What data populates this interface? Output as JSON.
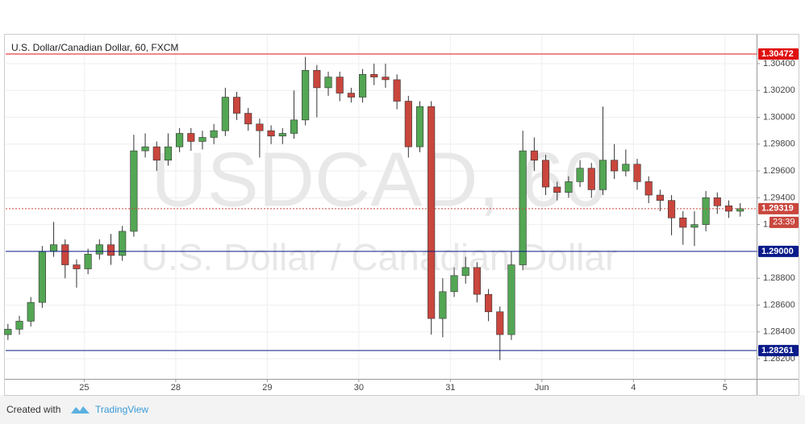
{
  "chart_data": {
    "type": "candlestick",
    "title": "U.S. Dollar/Canadian Dollar, 60, FXCM",
    "watermark": {
      "symbol": "USDCAD, 60",
      "description": "U.S. Dollar / Canadian Dollar"
    },
    "x": [
      0,
      3,
      6,
      9,
      12,
      15,
      18,
      21,
      24,
      27,
      30,
      33,
      36,
      39,
      42,
      45,
      48,
      51,
      54,
      57,
      60,
      63,
      66,
      69,
      72,
      75,
      78,
      81,
      84,
      87,
      90,
      93,
      96,
      99,
      102,
      105,
      108,
      111,
      114,
      117,
      120,
      123,
      126,
      129,
      132,
      135,
      138,
      141,
      144,
      147,
      150,
      153,
      156,
      159,
      162,
      165,
      168,
      171,
      174,
      177,
      180,
      183,
      186,
      189,
      192
    ],
    "open": [
      1.2838,
      1.2842,
      1.2848,
      1.2862,
      1.29,
      1.2905,
      1.289,
      1.2887,
      1.2898,
      1.2905,
      1.2897,
      1.2915,
      1.2975,
      1.2978,
      1.2968,
      1.2978,
      1.2988,
      1.2982,
      1.2985,
      1.299,
      1.3015,
      1.3003,
      1.2995,
      1.299,
      1.2986,
      1.2988,
      1.2998,
      1.3035,
      1.3022,
      1.303,
      1.3018,
      1.3015,
      1.3032,
      1.303,
      1.3028,
      1.3012,
      1.2978,
      1.3008,
      1.285,
      1.287,
      1.2882,
      1.2888,
      1.2868,
      1.2855,
      1.2838,
      1.289,
      1.2975,
      1.2968,
      1.2948,
      1.2944,
      1.2952,
      1.2962,
      1.2946,
      1.2968,
      1.296,
      1.2965,
      1.2952,
      1.2942,
      1.2938,
      1.2925,
      1.2918,
      1.292,
      1.294,
      1.2934,
      1.293
    ],
    "high": [
      1.2846,
      1.2852,
      1.2866,
      1.2904,
      1.2922,
      1.2909,
      1.2894,
      1.2902,
      1.2909,
      1.2913,
      1.2919,
      1.2987,
      1.2988,
      1.2982,
      1.2988,
      1.2992,
      1.2992,
      1.299,
      1.2995,
      1.3022,
      1.3019,
      1.3007,
      1.2999,
      1.2994,
      1.2992,
      1.302,
      1.3045,
      1.3039,
      1.3034,
      1.3034,
      1.3022,
      1.3036,
      1.304,
      1.304,
      1.3032,
      1.3016,
      1.3012,
      1.3012,
      1.288,
      1.2888,
      1.2896,
      1.2892,
      1.2872,
      1.2859,
      1.29,
      1.299,
      1.2985,
      1.2972,
      1.2952,
      1.2956,
      1.2968,
      1.2966,
      1.3008,
      1.298,
      1.2976,
      1.2969,
      1.2956,
      1.2946,
      1.2942,
      1.293,
      1.293,
      1.2945,
      1.2944,
      1.2938,
      1.2936
    ],
    "low": [
      1.2834,
      1.2838,
      1.2844,
      1.2858,
      1.2896,
      1.288,
      1.2873,
      1.2883,
      1.2894,
      1.289,
      1.2893,
      1.2911,
      1.297,
      1.296,
      1.2964,
      1.2974,
      1.2975,
      1.2976,
      1.298,
      1.2986,
      1.2998,
      1.299,
      1.297,
      1.298,
      1.298,
      1.2984,
      1.2994,
      1.3,
      1.3016,
      1.3012,
      1.3011,
      1.3011,
      1.3024,
      1.3022,
      1.3006,
      1.297,
      1.2974,
      1.2838,
      1.2836,
      1.2866,
      1.2876,
      1.2862,
      1.2848,
      1.2819,
      1.2834,
      1.2886,
      1.296,
      1.2942,
      1.2938,
      1.294,
      1.2948,
      1.294,
      1.2942,
      1.2954,
      1.2956,
      1.2946,
      1.2936,
      1.293,
      1.2912,
      1.2905,
      1.2904,
      1.2915,
      1.2928,
      1.2925,
      1.2926
    ],
    "close": [
      1.2842,
      1.2848,
      1.2862,
      1.29,
      1.2905,
      1.289,
      1.2887,
      1.2898,
      1.2905,
      1.2897,
      1.2915,
      1.2975,
      1.2978,
      1.2968,
      1.2978,
      1.2988,
      1.2982,
      1.2985,
      1.299,
      1.3015,
      1.3003,
      1.2995,
      1.299,
      1.2986,
      1.2988,
      1.2998,
      1.3035,
      1.3022,
      1.303,
      1.3018,
      1.3015,
      1.3032,
      1.303,
      1.3028,
      1.3012,
      1.2978,
      1.3008,
      1.285,
      1.287,
      1.2882,
      1.2888,
      1.2868,
      1.2855,
      1.2838,
      1.289,
      1.2975,
      1.2968,
      1.2948,
      1.2944,
      1.2952,
      1.2962,
      1.2946,
      1.2968,
      1.296,
      1.2965,
      1.2952,
      1.2942,
      1.2938,
      1.2925,
      1.2918,
      1.292,
      1.294,
      1.2934,
      1.293,
      1.29319
    ],
    "up_color": "#53a653",
    "down_color": "#c9463d",
    "xlim": [
      -0.6,
      196.3
    ],
    "xticks": [
      {
        "value": 20,
        "label": "25"
      },
      {
        "value": 44,
        "label": "28"
      },
      {
        "value": 68,
        "label": "29"
      },
      {
        "value": 92,
        "label": "30"
      },
      {
        "value": 116,
        "label": "31"
      },
      {
        "value": 140,
        "label": "Jun"
      },
      {
        "value": 164,
        "label": "4"
      },
      {
        "value": 188,
        "label": "5"
      }
    ],
    "ylim": [
      1.2805,
      1.30616
    ],
    "yticks": [
      {
        "value": 1.282,
        "label": "1.28200"
      },
      {
        "value": 1.284,
        "label": "1.28400"
      },
      {
        "value": 1.286,
        "label": "1.28600"
      },
      {
        "value": 1.288,
        "label": "1.28800"
      },
      {
        "value": 1.29,
        "label": "1.29000"
      },
      {
        "value": 1.292,
        "label": "1.29200"
      },
      {
        "value": 1.294,
        "label": "1.29400"
      },
      {
        "value": 1.296,
        "label": "1.29600"
      },
      {
        "value": 1.298,
        "label": "1.29800"
      },
      {
        "value": 1.3,
        "label": "1.30000"
      },
      {
        "value": 1.302,
        "label": "1.30200"
      },
      {
        "value": 1.304,
        "label": "1.30400"
      }
    ],
    "grid": true,
    "levels": [
      {
        "price": 1.30472,
        "color": "#e01010",
        "style": "solid"
      },
      {
        "price": 1.29319,
        "color": "#c9463d",
        "style": "dotted"
      },
      {
        "price": {
          "value": 1.29,
          "label": "1.29000"
        },
        "color": "#0a1a8a",
        "style": "solid"
      },
      {
        "price": 1.28261,
        "color": "#0a1a8a",
        "style": "solid"
      }
    ],
    "countdown": "23:39"
  },
  "footer": {
    "created_with": "Created with",
    "brand": "TradingView"
  }
}
